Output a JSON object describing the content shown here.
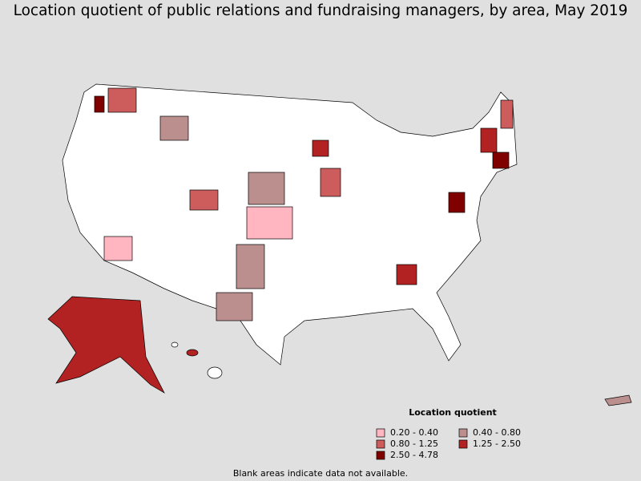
{
  "title": "Location quotient of public relations and fundraising managers, by area, May 2019",
  "legend": {
    "title": "Location quotient",
    "items": [
      {
        "label": "0.20 - 0.40",
        "color": "#ffb6c1"
      },
      {
        "label": "0.40 - 0.80",
        "color": "#bc8f8f"
      },
      {
        "label": "0.80 - 1.25",
        "color": "#cd5c5c"
      },
      {
        "label": "1.25 - 2.50",
        "color": "#b22222"
      },
      {
        "label": "2.50 - 4.78",
        "color": "#800000"
      }
    ]
  },
  "note": "Blank areas indicate data not available."
}
